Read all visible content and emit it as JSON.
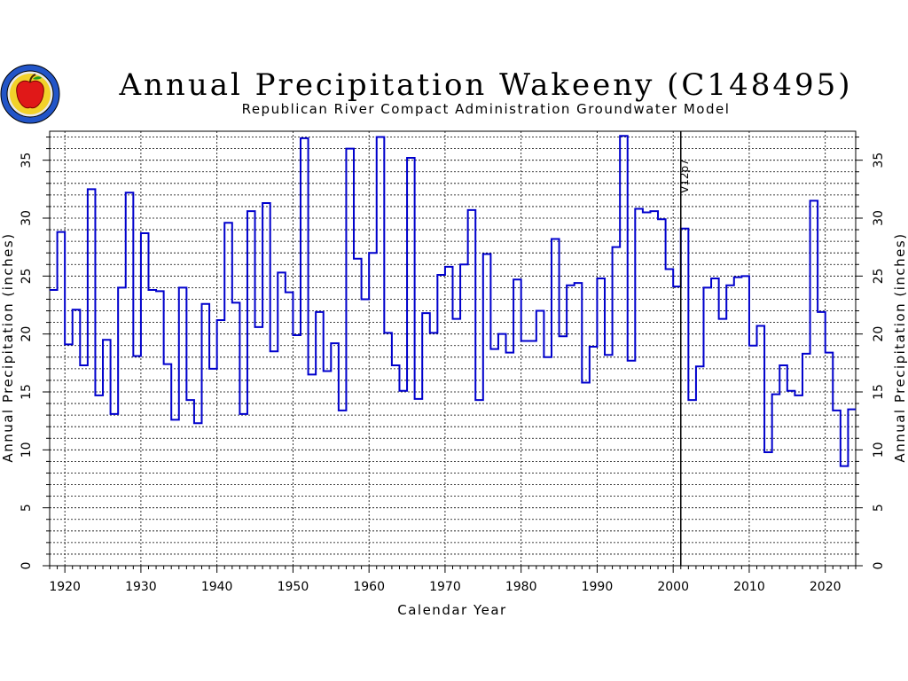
{
  "logo": {
    "name": "compact-seal"
  },
  "chart_data": {
    "type": "line",
    "step": true,
    "title": "Annual Precipitation Wakeeny (C148495)",
    "subtitle": "Republican River Compact Administration Groundwater Model",
    "xlabel": "Calendar Year",
    "ylabel": "Annual Precipitation (inches)",
    "ylabel_right": "Annual Precipitation (inches)",
    "xlim": [
      1918,
      2024
    ],
    "ylim": [
      0,
      37.5
    ],
    "xticks": [
      1920,
      1930,
      1940,
      1950,
      1960,
      1970,
      1980,
      1990,
      2000,
      2010,
      2020
    ],
    "yticks": [
      0,
      5,
      10,
      15,
      20,
      25,
      30,
      35
    ],
    "grid": true,
    "series_color": "#0000cc",
    "annotation": {
      "text": "V12p7",
      "x": 2001
    },
    "series": [
      {
        "x": [
          1918,
          1919,
          1920,
          1921,
          1922,
          1923,
          1924,
          1925,
          1926,
          1927,
          1928,
          1929,
          1930,
          1931,
          1932,
          1933,
          1934,
          1935,
          1936,
          1937,
          1938,
          1939,
          1940,
          1941,
          1942,
          1943,
          1944,
          1945,
          1946,
          1947,
          1948,
          1949,
          1950,
          1951,
          1952,
          1953,
          1954,
          1955,
          1956,
          1957,
          1958,
          1959,
          1960,
          1961,
          1962,
          1963,
          1964,
          1965,
          1966,
          1967,
          1968,
          1969,
          1970,
          1971,
          1972,
          1973,
          1974,
          1975,
          1976,
          1977,
          1978,
          1979,
          1980,
          1981,
          1982,
          1983,
          1984,
          1985,
          1986,
          1987,
          1988,
          1989,
          1990,
          1991,
          1992,
          1993,
          1994,
          1995,
          1996,
          1997,
          1998,
          1999,
          2000,
          2001,
          2002,
          2003,
          2004,
          2005,
          2006,
          2007,
          2008,
          2009,
          2010,
          2011,
          2012,
          2013,
          2014,
          2015,
          2016,
          2017,
          2018,
          2019,
          2020,
          2021,
          2022,
          2023
        ],
        "values": [
          23.8,
          28.8,
          19.1,
          22.1,
          17.3,
          32.5,
          14.7,
          19.5,
          13.1,
          24.0,
          32.2,
          18.1,
          28.7,
          23.8,
          23.7,
          17.4,
          12.6,
          24.0,
          14.3,
          12.3,
          22.6,
          17.0,
          21.2,
          29.6,
          22.7,
          13.1,
          30.6,
          20.6,
          31.3,
          18.5,
          25.3,
          23.6,
          19.9,
          36.9,
          16.5,
          21.9,
          16.8,
          19.2,
          13.4,
          36.0,
          26.5,
          23.0,
          27.0,
          37.0,
          20.1,
          17.3,
          15.1,
          35.2,
          14.4,
          21.8,
          20.1,
          25.1,
          25.8,
          21.3,
          26.0,
          30.7,
          14.3,
          26.9,
          18.7,
          20.0,
          18.4,
          24.7,
          19.4,
          19.4,
          22.0,
          18.0,
          28.2,
          19.8,
          24.2,
          24.4,
          15.8,
          18.9,
          24.8,
          18.2,
          27.5,
          37.1,
          17.7,
          30.8,
          30.5,
          30.6,
          29.9,
          25.6,
          24.1,
          29.1,
          14.3,
          17.2,
          24.0,
          24.8,
          21.3,
          24.2,
          24.9,
          25.0,
          19.0,
          20.7,
          9.8,
          14.8,
          17.3,
          15.1,
          14.7,
          18.3,
          31.5,
          21.9,
          18.4,
          13.4,
          8.6,
          13.5
        ]
      }
    ]
  }
}
